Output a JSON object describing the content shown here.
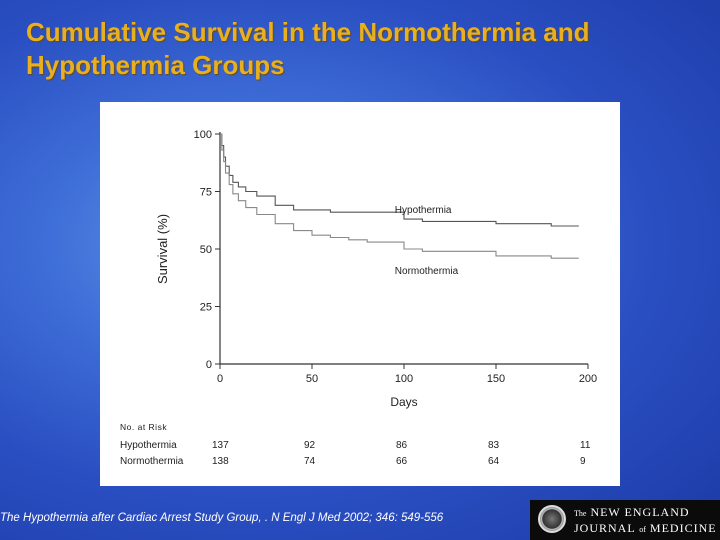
{
  "slide": {
    "title": "Cumulative Survival in the Normothermia and Hypothermia Groups",
    "citation": "The Hypothermia after Cardiac Arrest Study Group, . N Engl J Med 2002; 346: 549-556"
  },
  "logo": {
    "the": "The",
    "line1": "NEW ENGLAND",
    "line2_a": "JOURNAL",
    "of": "of",
    "line2_b": "MEDICINE"
  },
  "chart_data": {
    "type": "line",
    "xlabel": "Days",
    "ylabel": "Survival (%)",
    "xlim": [
      0,
      200
    ],
    "ylim": [
      0,
      100
    ],
    "xticks": [
      0,
      50,
      100,
      150,
      200
    ],
    "yticks": [
      0,
      25,
      50,
      75,
      100
    ],
    "grid": false,
    "series": [
      {
        "name": "Hypothermia",
        "color": "#555555",
        "x": [
          0,
          1,
          2,
          3,
          5,
          7,
          10,
          14,
          20,
          30,
          40,
          50,
          60,
          80,
          95,
          100,
          110,
          140,
          150,
          170,
          180,
          195
        ],
        "y": [
          100,
          95,
          90,
          86,
          82,
          79,
          77,
          75,
          73,
          69,
          67,
          67,
          66,
          66,
          66,
          63,
          62,
          62,
          61,
          61,
          60,
          60
        ]
      },
      {
        "name": "Normothermia",
        "color": "#888888",
        "x": [
          0,
          1,
          2,
          3,
          5,
          7,
          10,
          14,
          20,
          30,
          40,
          50,
          60,
          70,
          80,
          95,
          100,
          110,
          140,
          150,
          170,
          180,
          195
        ],
        "y": [
          100,
          93,
          88,
          83,
          78,
          74,
          71,
          68,
          65,
          61,
          58,
          56,
          55,
          54,
          53,
          53,
          50,
          49,
          49,
          47,
          47,
          46,
          46
        ]
      }
    ],
    "risk_table": {
      "header": "No. at Risk",
      "columns_days": [
        0,
        50,
        100,
        150,
        200
      ],
      "rows": [
        {
          "label": "Hypothermia",
          "values": [
            "137",
            "92",
            "86",
            "83",
            "11"
          ]
        },
        {
          "label": "Normothermia",
          "values": [
            "138",
            "74",
            "66",
            "64",
            "9"
          ]
        }
      ]
    }
  }
}
